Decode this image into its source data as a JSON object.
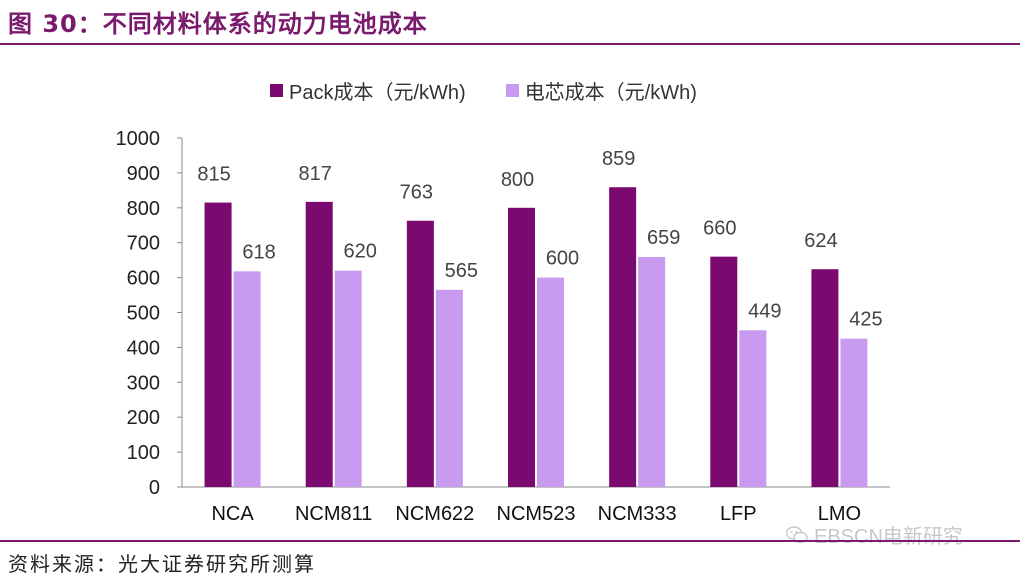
{
  "figure": {
    "title": "图 30：不同材料体系的动力电池成本",
    "source": "资料来源：光大证券研究所测算",
    "watermark": "EBSCN电新研究"
  },
  "colors": {
    "pack": "#7a0a70",
    "cell": "#c89bf0",
    "title": "#7a1a6c"
  },
  "chart_data": {
    "type": "bar",
    "categories": [
      "NCA",
      "NCM811",
      "NCM622",
      "NCM523",
      "NCM333",
      "LFP",
      "LMO"
    ],
    "series": [
      {
        "name": "Pack成本（元/kWh)",
        "values": [
          815,
          817,
          763,
          800,
          859,
          660,
          624
        ]
      },
      {
        "name": "电芯成本（元/kWh)",
        "values": [
          618,
          620,
          565,
          600,
          659,
          449,
          425
        ]
      }
    ],
    "ylim": [
      0,
      1000
    ],
    "yticks": [
      "0",
      "100",
      "200",
      "300",
      "400",
      "500",
      "600",
      "700",
      "800",
      "900",
      "1000"
    ],
    "legend_position": "top",
    "grid": false
  }
}
